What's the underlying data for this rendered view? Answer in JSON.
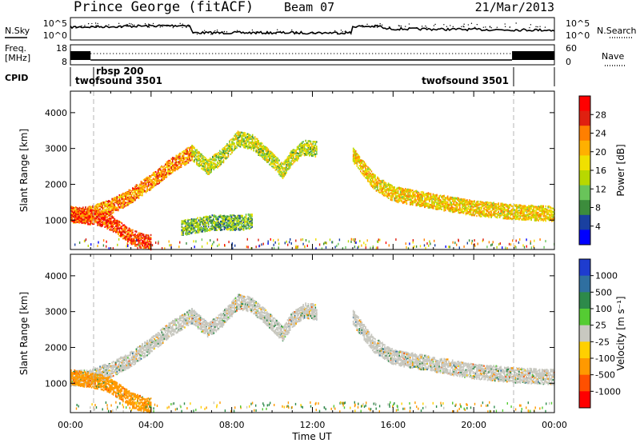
{
  "header": {
    "title": "Prince George (fitACF)",
    "beam": "Beam 07",
    "date": "21/Mar/2013"
  },
  "noise_panel": {
    "left_label": "N.Sky",
    "right_label": "N.Search",
    "ticks": [
      "10^5",
      "10^0"
    ]
  },
  "freq_panel": {
    "left_label_1": "Freq.",
    "left_label_2": "[MHz]",
    "left_ticks": [
      "18",
      "8"
    ],
    "right_label": "Nave",
    "right_ticks": [
      "60",
      "0"
    ]
  },
  "cpid_panel": {
    "label": "CPID",
    "segments": [
      "twofsound 3501",
      "rbsp 200",
      "twofsound 3501"
    ]
  },
  "x_ticks": [
    "00:00",
    "04:00",
    "08:00",
    "12:00",
    "16:00",
    "20:00",
    "00:00"
  ],
  "xlabel": "Time UT",
  "ylabel": "Slant Range [km]",
  "y_ticks": [
    "4000",
    "3000",
    "2000",
    "1000"
  ],
  "power_colorbar": {
    "label": "Power [dB]",
    "ticks": [
      "28",
      "24",
      "20",
      "16",
      "12",
      "8",
      "4"
    ],
    "colors": [
      "#ff0000",
      "#e02010",
      "#ff7f00",
      "#ffb000",
      "#f0e000",
      "#b8d800",
      "#69c45a",
      "#3c8c3c",
      "#1a40a0",
      "#0000ff"
    ]
  },
  "velocity_colorbar": {
    "label": "Velocity [m s⁻¹]",
    "ticks": [
      "1000",
      "500",
      "100",
      "25",
      "-25",
      "-100",
      "-500",
      "-1000"
    ],
    "colors": [
      "#1e3ccf",
      "#2f6fa0",
      "#2d8a4a",
      "#55cc33",
      "#c8c8c0",
      "#ffd000",
      "#ff9900",
      "#ff5000",
      "#ff0000"
    ]
  },
  "chart_data": [
    {
      "type": "heatmap",
      "title": "",
      "xlabel": "Time UT",
      "ylabel": "Slant Range [km]",
      "xlim": [
        0,
        24
      ],
      "ylim": [
        180,
        4600
      ],
      "colorbar": "Power [dB]",
      "clim": [
        0,
        30
      ],
      "echo_bands": [
        {
          "t": [
            0.0,
            1.0,
            2.0,
            3.0,
            4.0,
            5.0,
            6.0
          ],
          "r": [
            1150,
            1200,
            1400,
            1700,
            2100,
            2550,
            2900
          ],
          "power_db": 22
        },
        {
          "t": [
            6.0,
            6.8,
            7.5,
            8.3,
            9.0,
            9.8,
            10.5,
            11.0,
            11.6,
            12.2
          ],
          "r": [
            2900,
            2500,
            2800,
            3300,
            3200,
            2800,
            2400,
            2800,
            3050,
            3000
          ],
          "power_db": 14
        },
        {
          "t": [
            14.0,
            15.0,
            16.0,
            17.0,
            18.0,
            19.0,
            20.0,
            21.0,
            22.0,
            23.0,
            24.0
          ],
          "r": [
            2850,
            2100,
            1750,
            1650,
            1550,
            1450,
            1350,
            1300,
            1250,
            1220,
            1200
          ],
          "power_db": 18
        },
        {
          "t": [
            0.0,
            0.5,
            1.0,
            1.5,
            2.0,
            2.5,
            3.0,
            3.5,
            4.0
          ],
          "r": [
            1200,
            1150,
            1100,
            1050,
            950,
            750,
            550,
            450,
            400
          ],
          "power_db": 26
        },
        {
          "t": [
            5.5,
            6.0,
            6.5,
            7.0,
            7.5,
            8.0,
            8.5,
            9.0
          ],
          "r": [
            800,
            850,
            900,
            950,
            950,
            950,
            950,
            1000
          ],
          "power_db": 10
        }
      ]
    },
    {
      "type": "heatmap",
      "title": "",
      "xlabel": "Time UT",
      "ylabel": "Slant Range [km]",
      "xlim": [
        0,
        24
      ],
      "ylim": [
        180,
        4600
      ],
      "colorbar": "Velocity [m s⁻¹]",
      "clim": [
        -1000,
        1000
      ],
      "echo_bands": [
        {
          "t": [
            0.0,
            1.0,
            2.0,
            3.0,
            4.0,
            5.0,
            6.0
          ],
          "r": [
            1150,
            1200,
            1400,
            1700,
            2100,
            2550,
            2900
          ],
          "velocity": 0
        },
        {
          "t": [
            6.0,
            6.8,
            7.5,
            8.3,
            9.0,
            9.8,
            10.5,
            11.0,
            11.6,
            12.2
          ],
          "r": [
            2900,
            2500,
            2800,
            3300,
            3200,
            2800,
            2400,
            2800,
            3050,
            3000
          ],
          "velocity": 0
        },
        {
          "t": [
            14.0,
            15.0,
            16.0,
            17.0,
            18.0,
            19.0,
            20.0,
            21.0,
            22.0,
            23.0,
            24.0
          ],
          "r": [
            2850,
            2100,
            1750,
            1650,
            1550,
            1450,
            1350,
            1300,
            1250,
            1220,
            1200
          ],
          "velocity": 0
        },
        {
          "t": [
            0.0,
            0.5,
            1.0,
            1.5,
            2.0,
            2.5,
            3.0,
            3.5,
            4.0
          ],
          "r": [
            1200,
            1150,
            1100,
            1050,
            950,
            750,
            550,
            450,
            400
          ],
          "velocity": -250
        }
      ]
    }
  ]
}
